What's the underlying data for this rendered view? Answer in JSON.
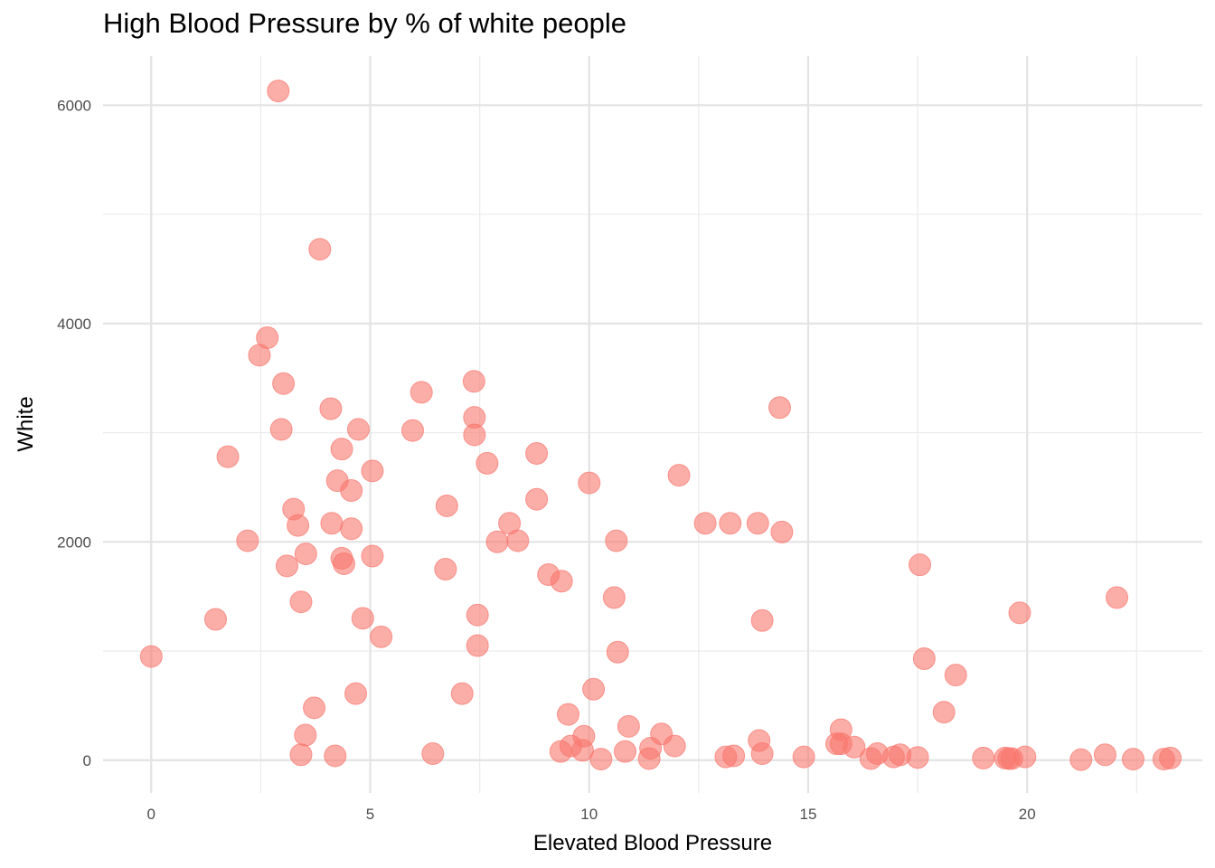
{
  "chart_data": {
    "type": "scatter",
    "title": "High Blood Pressure by % of white people",
    "xlabel": "Elevated Blood Pressure",
    "ylabel": "White",
    "xlim": [
      -1.1,
      24.0
    ],
    "ylim": [
      -300,
      6450
    ],
    "x_ticks": [
      0,
      5,
      10,
      15,
      20
    ],
    "x_tick_labels": [
      "0",
      "5",
      "10",
      "15",
      "20"
    ],
    "y_ticks": [
      0,
      2000,
      4000,
      6000
    ],
    "y_tick_labels": [
      "0",
      "2000",
      "4000",
      "6000"
    ],
    "grid": true,
    "point_color": "#F8766D",
    "points": [
      {
        "x": 2.9,
        "y": 6130
      },
      {
        "x": 3.85,
        "y": 4680
      },
      {
        "x": 2.65,
        "y": 3870
      },
      {
        "x": 2.47,
        "y": 3710
      },
      {
        "x": 3.02,
        "y": 3450
      },
      {
        "x": 4.1,
        "y": 3220
      },
      {
        "x": 6.17,
        "y": 3370
      },
      {
        "x": 7.37,
        "y": 3470
      },
      {
        "x": 14.35,
        "y": 3230
      },
      {
        "x": 2.97,
        "y": 3030
      },
      {
        "x": 4.73,
        "y": 3030
      },
      {
        "x": 5.97,
        "y": 3020
      },
      {
        "x": 7.38,
        "y": 3140
      },
      {
        "x": 7.38,
        "y": 2980
      },
      {
        "x": 4.35,
        "y": 2850
      },
      {
        "x": 1.75,
        "y": 2780
      },
      {
        "x": 8.8,
        "y": 2810
      },
      {
        "x": 7.67,
        "y": 2720
      },
      {
        "x": 5.05,
        "y": 2650
      },
      {
        "x": 4.25,
        "y": 2560
      },
      {
        "x": 4.57,
        "y": 2470
      },
      {
        "x": 12.05,
        "y": 2610
      },
      {
        "x": 10.0,
        "y": 2540
      },
      {
        "x": 8.8,
        "y": 2390
      },
      {
        "x": 6.75,
        "y": 2330
      },
      {
        "x": 3.25,
        "y": 2300
      },
      {
        "x": 3.35,
        "y": 2150
      },
      {
        "x": 4.12,
        "y": 2170
      },
      {
        "x": 4.57,
        "y": 2120
      },
      {
        "x": 8.18,
        "y": 2170
      },
      {
        "x": 12.65,
        "y": 2170
      },
      {
        "x": 13.22,
        "y": 2170
      },
      {
        "x": 13.85,
        "y": 2170
      },
      {
        "x": 14.4,
        "y": 2090
      },
      {
        "x": 2.2,
        "y": 2010
      },
      {
        "x": 7.9,
        "y": 2000
      },
      {
        "x": 8.37,
        "y": 2010
      },
      {
        "x": 10.62,
        "y": 2010
      },
      {
        "x": 3.53,
        "y": 1890
      },
      {
        "x": 4.35,
        "y": 1850
      },
      {
        "x": 5.05,
        "y": 1870
      },
      {
        "x": 3.1,
        "y": 1780
      },
      {
        "x": 4.4,
        "y": 1800
      },
      {
        "x": 6.72,
        "y": 1750
      },
      {
        "x": 9.07,
        "y": 1700
      },
      {
        "x": 9.37,
        "y": 1640
      },
      {
        "x": 17.55,
        "y": 1790
      },
      {
        "x": 3.42,
        "y": 1450
      },
      {
        "x": 10.57,
        "y": 1490
      },
      {
        "x": 22.05,
        "y": 1490
      },
      {
        "x": 1.47,
        "y": 1290
      },
      {
        "x": 4.83,
        "y": 1300
      },
      {
        "x": 7.45,
        "y": 1330
      },
      {
        "x": 13.95,
        "y": 1280
      },
      {
        "x": 19.83,
        "y": 1350
      },
      {
        "x": 5.25,
        "y": 1130
      },
      {
        "x": 7.45,
        "y": 1050
      },
      {
        "x": 0.0,
        "y": 950
      },
      {
        "x": 10.65,
        "y": 990
      },
      {
        "x": 17.65,
        "y": 930
      },
      {
        "x": 18.37,
        "y": 780
      },
      {
        "x": 4.67,
        "y": 610
      },
      {
        "x": 7.1,
        "y": 610
      },
      {
        "x": 10.1,
        "y": 650
      },
      {
        "x": 3.72,
        "y": 480
      },
      {
        "x": 9.52,
        "y": 420
      },
      {
        "x": 18.1,
        "y": 440
      },
      {
        "x": 10.9,
        "y": 310
      },
      {
        "x": 15.75,
        "y": 280
      },
      {
        "x": 3.52,
        "y": 230
      },
      {
        "x": 9.88,
        "y": 220
      },
      {
        "x": 11.65,
        "y": 240
      },
      {
        "x": 13.88,
        "y": 180
      },
      {
        "x": 15.65,
        "y": 150
      },
      {
        "x": 15.75,
        "y": 150
      },
      {
        "x": 9.58,
        "y": 130
      },
      {
        "x": 11.95,
        "y": 130
      },
      {
        "x": 16.05,
        "y": 120
      },
      {
        "x": 9.35,
        "y": 80
      },
      {
        "x": 9.85,
        "y": 90
      },
      {
        "x": 10.82,
        "y": 80
      },
      {
        "x": 11.4,
        "y": 110
      },
      {
        "x": 13.95,
        "y": 60
      },
      {
        "x": 16.58,
        "y": 60
      },
      {
        "x": 17.1,
        "y": 50
      },
      {
        "x": 21.78,
        "y": 50
      },
      {
        "x": 3.42,
        "y": 50
      },
      {
        "x": 4.2,
        "y": 40
      },
      {
        "x": 6.43,
        "y": 60
      },
      {
        "x": 13.3,
        "y": 40
      },
      {
        "x": 13.12,
        "y": 30
      },
      {
        "x": 14.9,
        "y": 30
      },
      {
        "x": 16.95,
        "y": 30
      },
      {
        "x": 17.5,
        "y": 25
      },
      {
        "x": 19.0,
        "y": 20
      },
      {
        "x": 19.5,
        "y": 20
      },
      {
        "x": 19.58,
        "y": 15
      },
      {
        "x": 19.95,
        "y": 30
      },
      {
        "x": 10.27,
        "y": 10
      },
      {
        "x": 11.37,
        "y": 15
      },
      {
        "x": 16.43,
        "y": 15
      },
      {
        "x": 19.65,
        "y": 15
      },
      {
        "x": 21.23,
        "y": 5
      },
      {
        "x": 22.42,
        "y": 10
      },
      {
        "x": 23.12,
        "y": 10
      },
      {
        "x": 23.27,
        "y": 20
      }
    ]
  }
}
